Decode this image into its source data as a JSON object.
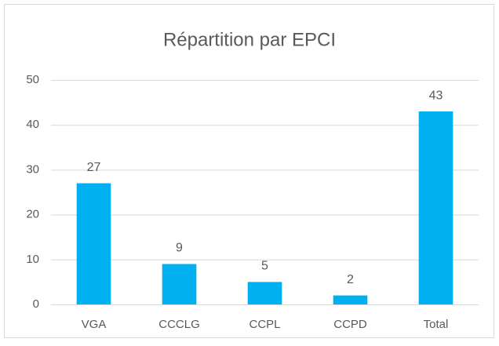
{
  "chart_data": {
    "type": "bar",
    "title": "Répartition par EPCI",
    "categories": [
      "VGA",
      "CCCLG",
      "CCPL",
      "CCPD",
      "Total"
    ],
    "values": [
      27,
      9,
      5,
      2,
      43
    ],
    "color": "#00b0f0",
    "ylim": [
      0,
      50
    ],
    "yticks": [
      0,
      10,
      20,
      30,
      40,
      50
    ],
    "grid": true,
    "data_labels": true
  }
}
